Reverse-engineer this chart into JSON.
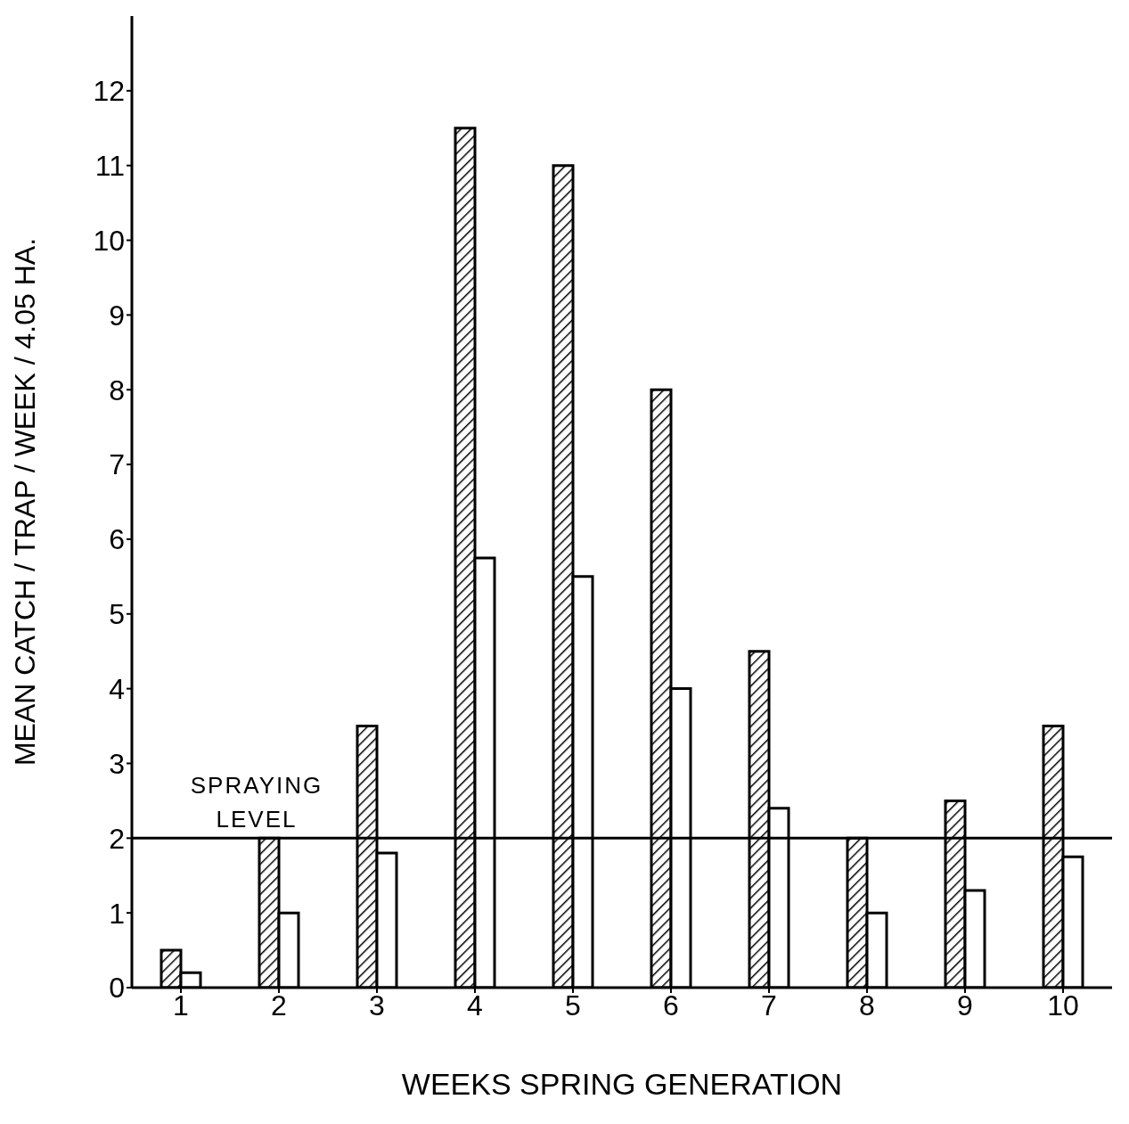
{
  "chart_data": {
    "type": "bar",
    "xlabel": "WEEKS SPRING GENERATION",
    "ylabel": "MEAN CATCH / TRAP / WEEK / 4.05 HA.",
    "categories": [
      "1",
      "2",
      "3",
      "4",
      "5",
      "6",
      "7",
      "8",
      "9",
      "10"
    ],
    "series": [
      {
        "color": "#000000",
        "values": [
          0.5,
          2,
          3.5,
          11.5,
          11,
          8,
          4.5,
          2,
          2.5,
          3.5
        ]
      },
      {
        "color": "#ffffff",
        "values": [
          0.2,
          1,
          1.8,
          5.75,
          5.5,
          4,
          2.4,
          1,
          1.3,
          1.75
        ]
      }
    ],
    "ylim": [
      0,
      13
    ],
    "yticks": [
      0,
      1,
      2,
      3,
      4,
      5,
      6,
      7,
      8,
      9,
      10,
      11,
      12
    ],
    "ref_lines": [
      {
        "axis": "y",
        "value": 2,
        "label": "SPRAYING LEVEL",
        "color": "#000000"
      }
    ],
    "grid": false,
    "legend": false
  }
}
